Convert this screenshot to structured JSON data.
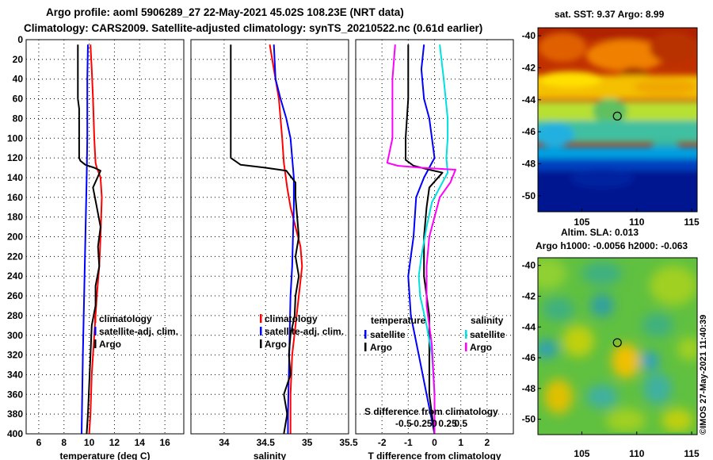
{
  "header": {
    "title_line1": "Argo profile: aoml 5906289_27 22-May-2021 45.02S 108.23E (NRT data)",
    "title_line2": "Climatology: CARS2009. Satellite-adjusted climatology: synTS_20210522.nc (0.61d earlier)"
  },
  "colors": {
    "argo": "#000000",
    "climatology": "#ff0000",
    "satellite": "#0000ff",
    "salinity_satellite": "#00e0e0",
    "salinity_argo": "#ff00ff"
  },
  "chart_data": [
    {
      "id": "temperature",
      "type": "line",
      "xlabel": "temperature (deg C)",
      "ylabel": "",
      "xlim": [
        5,
        17.5
      ],
      "ylim": [
        400,
        0
      ],
      "x_ticks": [
        6,
        8,
        10,
        12,
        14,
        16
      ],
      "x_tick_labels": [
        "6",
        "8",
        "10",
        "12",
        "14",
        "16"
      ],
      "y_ticks": [
        0,
        20,
        40,
        60,
        80,
        100,
        120,
        140,
        160,
        180,
        200,
        220,
        240,
        260,
        280,
        300,
        320,
        340,
        360,
        380,
        400
      ],
      "y_tick_labels": [
        "0",
        "20",
        "40",
        "60",
        "80",
        "100",
        "120",
        "140",
        "160",
        "180",
        "200",
        "220",
        "240",
        "260",
        "280",
        "300",
        "320",
        "340",
        "360",
        "380",
        "400"
      ],
      "grid": true,
      "legend": [
        "climatology",
        "satellite-adj. clim.",
        "Argo"
      ],
      "legend_position": "lower-right",
      "series": [
        {
          "name": "climatology",
          "color": "#ff0000",
          "points": [
            [
              10.1,
              5
            ],
            [
              10.2,
              30
            ],
            [
              10.3,
              60
            ],
            [
              10.4,
              100
            ],
            [
              10.5,
              125
            ],
            [
              10.6,
              130
            ],
            [
              10.9,
              140
            ],
            [
              11.0,
              160
            ],
            [
              10.9,
              200
            ],
            [
              10.8,
              230
            ],
            [
              10.6,
              260
            ],
            [
              10.4,
              300
            ],
            [
              10.2,
              340
            ],
            [
              10.1,
              380
            ],
            [
              10.0,
              400
            ]
          ]
        },
        {
          "name": "satellite-adj. clim.",
          "color": "#0000ff",
          "points": [
            [
              9.9,
              5
            ],
            [
              9.85,
              40
            ],
            [
              9.85,
              100
            ],
            [
              9.8,
              140
            ],
            [
              9.7,
              200
            ],
            [
              9.6,
              260
            ],
            [
              9.5,
              320
            ],
            [
              9.45,
              360
            ],
            [
              9.4,
              400
            ]
          ]
        },
        {
          "name": "Argo",
          "color": "#000000",
          "points": [
            [
              9.1,
              5
            ],
            [
              9.1,
              60
            ],
            [
              9.2,
              70
            ],
            [
              9.2,
              120
            ],
            [
              9.3,
              123
            ],
            [
              9.7,
              127
            ],
            [
              10.4,
              130
            ],
            [
              10.9,
              133
            ],
            [
              10.3,
              150
            ],
            [
              10.6,
              170
            ],
            [
              10.9,
              190
            ],
            [
              10.7,
              210
            ],
            [
              10.8,
              230
            ],
            [
              10.5,
              250
            ],
            [
              10.5,
              270
            ],
            [
              10.2,
              290
            ],
            [
              10.1,
              320
            ],
            [
              10.0,
              350
            ],
            [
              9.9,
              380
            ],
            [
              9.8,
              400
            ]
          ]
        }
      ]
    },
    {
      "id": "salinity",
      "type": "line",
      "xlabel": "salinity",
      "ylabel": "",
      "xlim": [
        33.6,
        35.5
      ],
      "ylim": [
        400,
        0
      ],
      "x_ticks": [
        34,
        34.5,
        35,
        35.5
      ],
      "x_tick_labels": [
        "34",
        "34.5",
        "35",
        "35.5"
      ],
      "grid": true,
      "legend": [
        "climatology",
        "satellite-adj. clim.",
        "Argo"
      ],
      "legend_position": "lower-right",
      "series": [
        {
          "name": "climatology",
          "color": "#ff0000",
          "points": [
            [
              34.55,
              5
            ],
            [
              34.58,
              20
            ],
            [
              34.62,
              40
            ],
            [
              34.66,
              60
            ],
            [
              34.68,
              80
            ],
            [
              34.7,
              100
            ],
            [
              34.72,
              125
            ],
            [
              34.76,
              150
            ],
            [
              34.8,
              170
            ],
            [
              34.86,
              190
            ],
            [
              34.92,
              210
            ],
            [
              34.94,
              230
            ],
            [
              34.9,
              260
            ],
            [
              34.86,
              290
            ],
            [
              34.82,
              320
            ],
            [
              34.8,
              360
            ],
            [
              34.8,
              400
            ]
          ]
        },
        {
          "name": "satellite-adj. clim.",
          "color": "#0000ff",
          "points": [
            [
              34.6,
              5
            ],
            [
              34.62,
              40
            ],
            [
              34.68,
              60
            ],
            [
              34.75,
              80
            ],
            [
              34.8,
              100
            ],
            [
              34.82,
              120
            ],
            [
              34.84,
              140
            ],
            [
              34.84,
              170
            ],
            [
              34.83,
              200
            ],
            [
              34.82,
              230
            ],
            [
              34.8,
              260
            ],
            [
              34.79,
              300
            ],
            [
              34.78,
              340
            ],
            [
              34.77,
              380
            ],
            [
              34.77,
              400
            ]
          ]
        },
        {
          "name": "Argo",
          "color": "#000000",
          "points": [
            [
              34.08,
              5
            ],
            [
              34.08,
              120
            ],
            [
              34.2,
              127
            ],
            [
              34.5,
              130
            ],
            [
              34.75,
              133
            ],
            [
              34.86,
              145
            ],
            [
              34.86,
              160
            ],
            [
              34.88,
              180
            ],
            [
              34.9,
              200
            ],
            [
              34.86,
              220
            ],
            [
              34.9,
              240
            ],
            [
              34.86,
              260
            ],
            [
              34.85,
              280
            ],
            [
              34.8,
              300
            ],
            [
              34.78,
              320
            ],
            [
              34.8,
              340
            ],
            [
              34.72,
              360
            ],
            [
              34.76,
              380
            ],
            [
              34.72,
              400
            ]
          ]
        }
      ]
    },
    {
      "id": "differences",
      "type": "line",
      "xlabel": "T difference from climatology",
      "x2label": "S difference from climatology",
      "xlim": [
        -3,
        3
      ],
      "ylim": [
        400,
        0
      ],
      "x_ticks": [
        -2,
        -1,
        0,
        1,
        2
      ],
      "x_tick_labels": [
        "-2",
        "-1",
        "0",
        "1",
        "2"
      ],
      "x2_tick_labels": [
        "-0.5",
        "-0.25",
        "0",
        "0.25",
        "0.5"
      ],
      "grid": true,
      "legend_temperature_title": "temperature",
      "legend_salinity_title": "salinity",
      "legend_temperature": [
        "satellite",
        "Argo"
      ],
      "legend_salinity": [
        "satellite",
        "Argo"
      ],
      "series": [
        {
          "name": "temperature satellite",
          "color": "#0000ff",
          "points": [
            [
              -0.4,
              5
            ],
            [
              -0.5,
              30
            ],
            [
              -0.4,
              60
            ],
            [
              -0.2,
              80
            ],
            [
              -0.1,
              100
            ],
            [
              0.0,
              120
            ],
            [
              -0.4,
              140
            ],
            [
              -0.7,
              160
            ],
            [
              -0.8,
              200
            ],
            [
              -0.9,
              220
            ],
            [
              -1.0,
              240
            ],
            [
              -0.9,
              280
            ],
            [
              -0.6,
              320
            ],
            [
              -0.3,
              360
            ],
            [
              0.0,
              400
            ]
          ]
        },
        {
          "name": "temperature Argo",
          "color": "#000000",
          "points": [
            [
              -1.0,
              5
            ],
            [
              -1.0,
              60
            ],
            [
              -1.1,
              100
            ],
            [
              -1.1,
              122
            ],
            [
              -0.8,
              128
            ],
            [
              -0.2,
              132
            ],
            [
              0.3,
              135
            ],
            [
              -0.2,
              150
            ],
            [
              -0.3,
              170
            ],
            [
              -0.4,
              200
            ],
            [
              -0.4,
              240
            ],
            [
              -0.2,
              280
            ],
            [
              -0.2,
              320
            ],
            [
              -0.2,
              360
            ],
            [
              0.0,
              400
            ]
          ]
        },
        {
          "name": "salinity satellite",
          "color": "#00e0e0",
          "points": [
            [
              0.2,
              5
            ],
            [
              0.35,
              40
            ],
            [
              0.5,
              80
            ],
            [
              0.5,
              100
            ],
            [
              0.45,
              120
            ],
            [
              0.5,
              135
            ],
            [
              0.2,
              150
            ],
            [
              -0.1,
              165
            ],
            [
              -0.3,
              190
            ],
            [
              -0.5,
              220
            ],
            [
              -0.6,
              240
            ],
            [
              -0.55,
              260
            ],
            [
              -0.3,
              290
            ],
            [
              -0.1,
              320
            ],
            [
              0.0,
              360
            ],
            [
              0.0,
              400
            ]
          ]
        },
        {
          "name": "salinity Argo",
          "color": "#ff00ff",
          "points": [
            [
              -1.5,
              5
            ],
            [
              -1.6,
              40
            ],
            [
              -1.6,
              100
            ],
            [
              -1.8,
              125
            ],
            [
              -1.4,
              128
            ],
            [
              -0.5,
              130
            ],
            [
              0.8,
              132
            ],
            [
              0.6,
              145
            ],
            [
              0.2,
              160
            ],
            [
              0.0,
              180
            ],
            [
              -0.2,
              200
            ],
            [
              -0.3,
              230
            ],
            [
              -0.3,
              270
            ],
            [
              -0.1,
              310
            ],
            [
              0.0,
              360
            ],
            [
              0.0,
              400
            ]
          ]
        }
      ]
    },
    {
      "id": "sst_map",
      "type": "heatmap",
      "title": "sat. SST: 9.37 Argo: 8.99",
      "x_tick_labels": [
        "105",
        "110",
        "115"
      ],
      "y_tick_labels": [
        "-40",
        "-42",
        "-44",
        "-46",
        "-48",
        "-50"
      ],
      "xlim": [
        101,
        115.5
      ],
      "ylim": [
        -51,
        -39.5
      ],
      "profile_lon": 108.23,
      "profile_lat": -45.02
    },
    {
      "id": "sla_map",
      "type": "heatmap",
      "title_line1": "Altim. SLA: 0.013",
      "title_line2": "Argo h1000: -0.0056 h2000: -0.063",
      "x_tick_labels": [
        "105",
        "110",
        "115"
      ],
      "y_tick_labels": [
        "-40",
        "-42",
        "-44",
        "-46",
        "-48",
        "-50"
      ],
      "xlim": [
        101,
        115.5
      ],
      "ylim": [
        -51,
        -39.5
      ],
      "profile_lon": 108.23,
      "profile_lat": -45.02
    }
  ],
  "footer": {
    "credit": "©IMOS 27-May-2021 11:40:39"
  }
}
